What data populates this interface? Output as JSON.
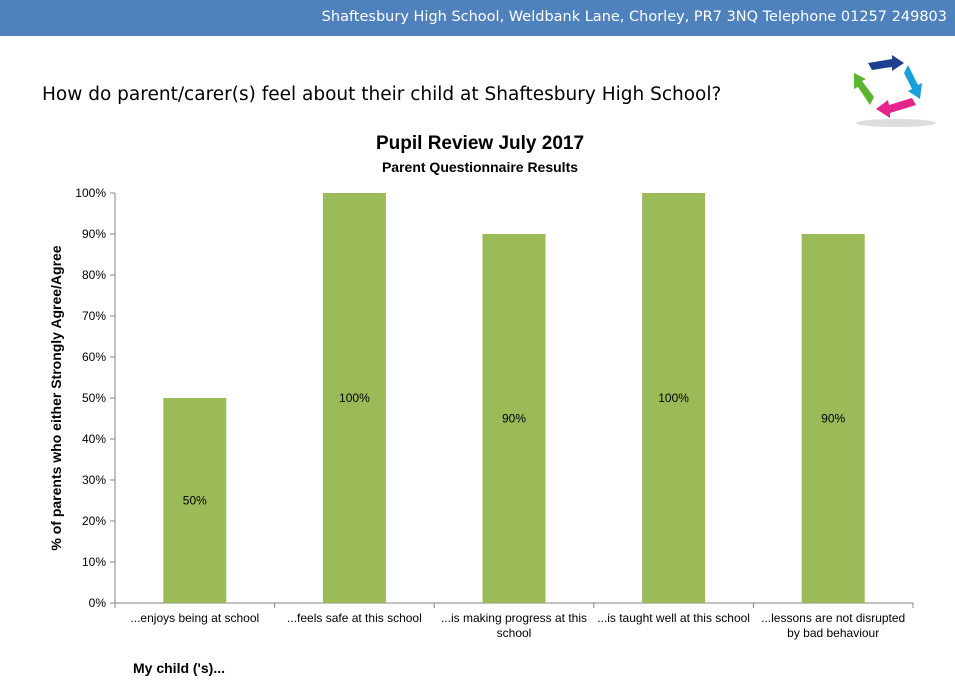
{
  "header": {
    "contact_text": "Shaftesbury High School, Weldbank Lane, Chorley, PR7 3NQ Telephone 01257 249803",
    "background_color": "#4f81bd"
  },
  "question": "How do parent/carer(s) feel about their child at Shaftesbury High School?",
  "logo": {
    "icon": "school-logo-arrows-icon"
  },
  "chart_data": {
    "type": "bar",
    "title": "Pupil Review July 2017",
    "subtitle": "Parent Questionnaire Results",
    "ylabel": "% of parents who either Strongly Agree/Agree",
    "xlabel": "My child ('s)...",
    "categories": [
      "...enjoys being at school",
      "...feels safe at this school",
      "...is making progress at this school",
      "...is taught well at this school",
      "...lessons are not disrupted by bad behaviour"
    ],
    "values": [
      50,
      100,
      90,
      100,
      90
    ],
    "data_labels": [
      "50%",
      "100%",
      "90%",
      "100%",
      "90%"
    ],
    "ylim": [
      0,
      100
    ],
    "yticks": [
      "0%",
      "10%",
      "20%",
      "30%",
      "40%",
      "50%",
      "60%",
      "70%",
      "80%",
      "90%",
      "100%"
    ],
    "bar_color": "#9bbb59",
    "grid": false,
    "legend": "none"
  }
}
